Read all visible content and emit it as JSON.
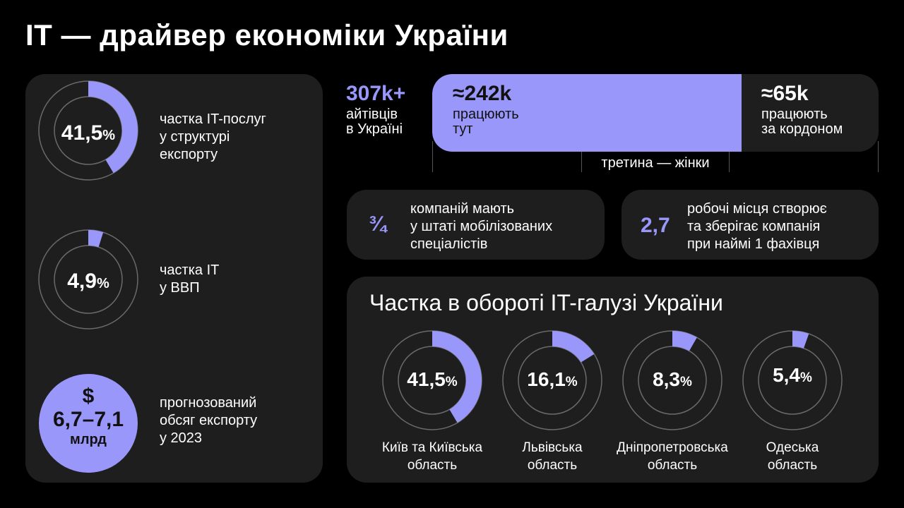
{
  "title": "IT — драйвер економіки України",
  "accent_color": "#9a97fb",
  "left_panel": {
    "export_share": {
      "value": 41.5,
      "value_text": "41,5",
      "unit": "%",
      "line1": "частка IT-послуг",
      "line2": "у структурі",
      "line3": "експорту"
    },
    "gdp_share": {
      "value": 4.9,
      "value_text": "4,9",
      "unit": "%",
      "line1": "частка IT",
      "line2": "у ВВП"
    },
    "forecast": {
      "currency": "$",
      "value_text": "6,7–7,1",
      "unit": "млрд",
      "line1": "прогнозований",
      "line2": "обсяг експорту",
      "line3": "у 2023"
    }
  },
  "workers": {
    "total": "307k+",
    "total_line1": "айтівців",
    "total_line2": "в Україні",
    "here": "≈242k",
    "here_line1": "працюють",
    "here_line2": "тут",
    "abroad": "≈65k",
    "abroad_line1": "працюють",
    "abroad_line2": "за кордоном",
    "women_note": "третина — жінки"
  },
  "facts": [
    {
      "value": "¾",
      "line1": "компаній мають",
      "line2": "у штаті мобілізованих",
      "line3": "спеціалістів"
    },
    {
      "value": "2,7",
      "line1": "робочі місця створює",
      "line2": "та зберігає компанія",
      "line3": "при наймі 1 фахівця"
    }
  ],
  "regions": {
    "title": "Частка в обороті IT-галузі України",
    "items": [
      {
        "value": 41.5,
        "value_text": "41,5",
        "unit": "%",
        "line1": "Київ та Київська",
        "line2": "область"
      },
      {
        "value": 16.1,
        "value_text": "16,1",
        "unit": "%",
        "line1": "Львівська",
        "line2": "область"
      },
      {
        "value": 8.3,
        "value_text": "8,3",
        "unit": "%",
        "line1": "Дніпропетровська",
        "line2": "область"
      },
      {
        "value": 5.4,
        "value_text": "5,4",
        "unit": "%",
        "line1": "Одеська",
        "line2": "область"
      }
    ]
  }
}
